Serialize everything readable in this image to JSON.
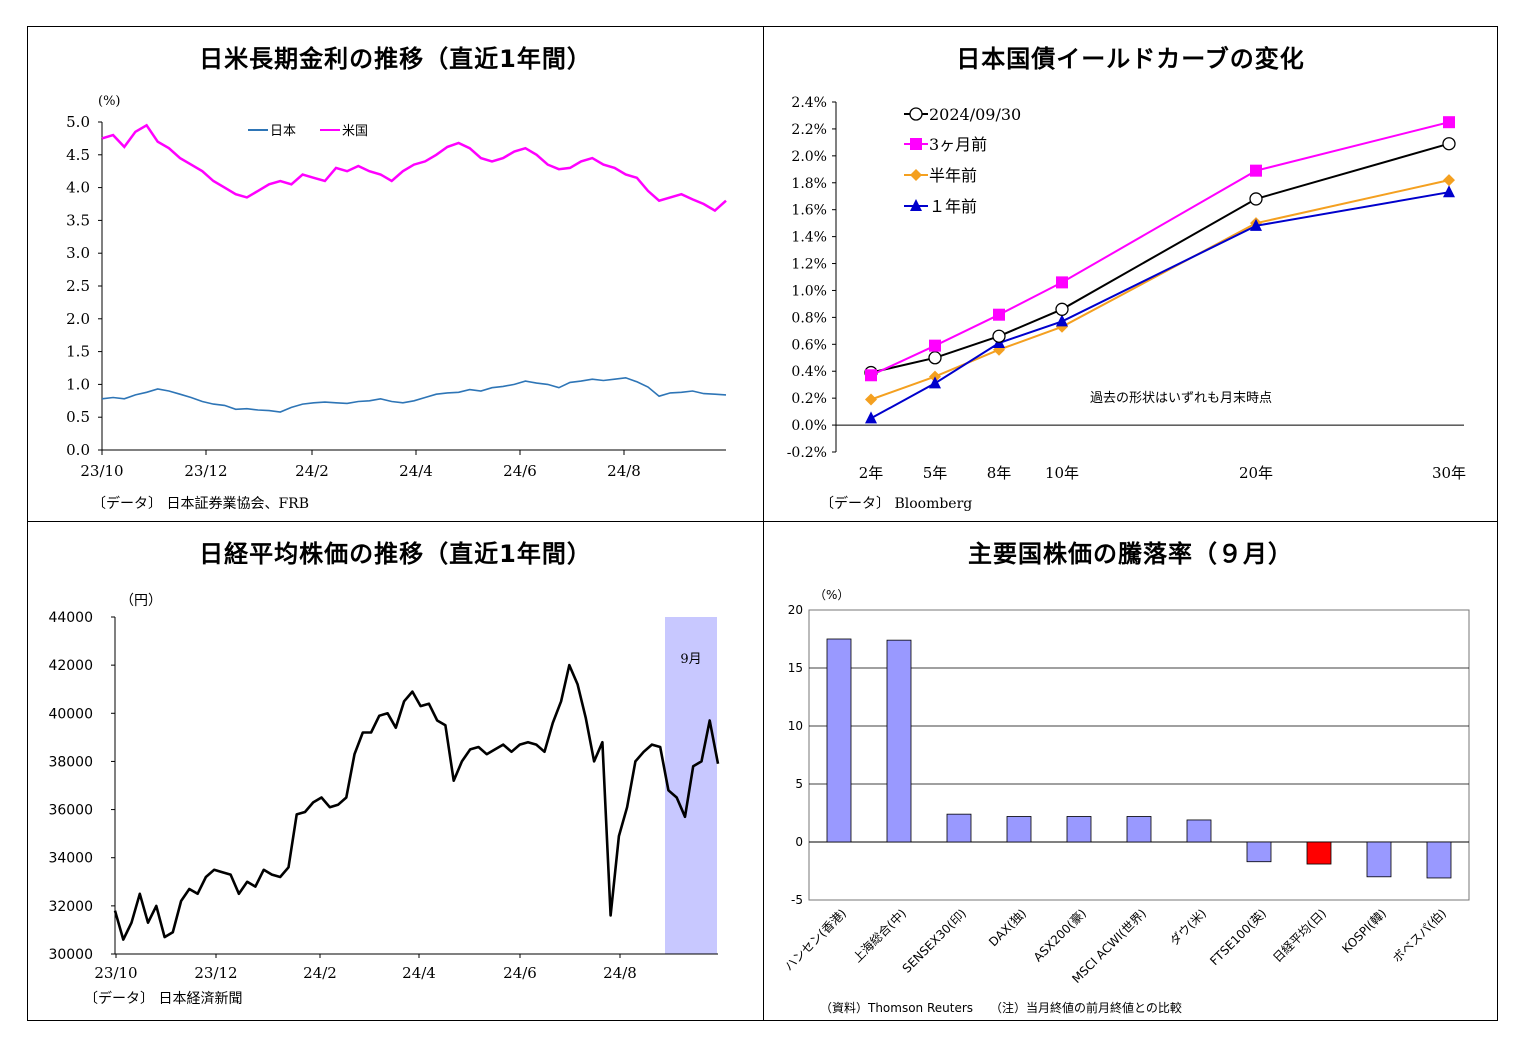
{
  "charts": [
    {
      "id": "rates",
      "title": "日米長期金利の推移（直近1年間）",
      "source": "〔データ〕 日本証券業協会、FRB",
      "chart_data": {
        "type": "line",
        "ylabel": "(%)",
        "ylim": [
          0,
          5
        ],
        "yticks": [
          "0.0",
          "0.5",
          "1.0",
          "1.5",
          "2.0",
          "2.5",
          "3.0",
          "3.5",
          "4.0",
          "4.5",
          "5.0"
        ],
        "xticks": [
          "23/10",
          "23/12",
          "24/2",
          "24/4",
          "24/6",
          "24/8"
        ],
        "series": [
          {
            "name": "日本",
            "color": "#2e75b6",
            "values": [
              0.78,
              0.8,
              0.78,
              0.84,
              0.88,
              0.93,
              0.9,
              0.85,
              0.8,
              0.74,
              0.7,
              0.68,
              0.62,
              0.63,
              0.61,
              0.6,
              0.58,
              0.65,
              0.7,
              0.72,
              0.73,
              0.72,
              0.71,
              0.74,
              0.75,
              0.78,
              0.74,
              0.72,
              0.75,
              0.8,
              0.85,
              0.87,
              0.88,
              0.92,
              0.9,
              0.95,
              0.97,
              1.0,
              1.05,
              1.02,
              1.0,
              0.95,
              1.03,
              1.05,
              1.08,
              1.06,
              1.08,
              1.1,
              1.04,
              0.96,
              0.82,
              0.87,
              0.88,
              0.9,
              0.86,
              0.85,
              0.84
            ]
          },
          {
            "name": "米国",
            "color": "#ff00ff",
            "values": [
              4.75,
              4.8,
              4.62,
              4.85,
              4.95,
              4.7,
              4.6,
              4.45,
              4.35,
              4.25,
              4.1,
              4.0,
              3.9,
              3.85,
              3.95,
              4.05,
              4.1,
              4.05,
              4.2,
              4.15,
              4.1,
              4.3,
              4.25,
              4.33,
              4.25,
              4.2,
              4.1,
              4.25,
              4.35,
              4.4,
              4.5,
              4.62,
              4.68,
              4.6,
              4.45,
              4.4,
              4.45,
              4.55,
              4.6,
              4.5,
              4.35,
              4.28,
              4.3,
              4.4,
              4.45,
              4.35,
              4.3,
              4.2,
              4.15,
              3.95,
              3.8,
              3.85,
              3.9,
              3.82,
              3.75,
              3.65,
              3.8
            ]
          }
        ]
      }
    },
    {
      "id": "yield",
      "title": "日本国債イールドカーブの変化",
      "source": "〔データ〕 Bloomberg",
      "annotation": "過去の形状はいずれも月末時点",
      "chart_data": {
        "type": "line",
        "x": [
          2,
          5,
          8,
          10,
          20,
          30
        ],
        "xticks": [
          "2年",
          "5年",
          "8年",
          "10年",
          "20年",
          "30年"
        ],
        "ylim": [
          -0.2,
          2.4
        ],
        "yticks": [
          "-0.2%",
          "0.0%",
          "0.2%",
          "0.4%",
          "0.6%",
          "0.8%",
          "1.0%",
          "1.2%",
          "1.4%",
          "1.6%",
          "1.8%",
          "2.0%",
          "2.2%",
          "2.4%"
        ],
        "series": [
          {
            "name": "2024/09/30",
            "color": "#000000",
            "marker": "circle",
            "values": [
              0.39,
              0.5,
              0.66,
              0.86,
              1.68,
              2.09
            ]
          },
          {
            "name": "3ヶ月前",
            "color": "#ff00ff",
            "marker": "square",
            "values": [
              0.37,
              0.59,
              0.82,
              1.06,
              1.89,
              2.25
            ]
          },
          {
            "name": "半年前",
            "color": "#f4a020",
            "marker": "diamond",
            "values": [
              0.19,
              0.36,
              0.56,
              0.73,
              1.5,
              1.82
            ]
          },
          {
            "name": "１年前",
            "color": "#0000cc",
            "marker": "triangle",
            "values": [
              0.05,
              0.31,
              0.61,
              0.77,
              1.48,
              1.73
            ]
          }
        ]
      }
    },
    {
      "id": "nikkei",
      "title": "日経平均株価の推移（直近1年間）",
      "source": "〔データ〕 日本経済新聞",
      "band_label": "9月",
      "chart_data": {
        "type": "line",
        "ylabel": "（円）",
        "ylim": [
          30000,
          44000
        ],
        "yticks": [
          "30000",
          "32000",
          "34000",
          "36000",
          "38000",
          "40000",
          "42000",
          "44000"
        ],
        "xticks": [
          "23/10",
          "23/12",
          "24/2",
          "24/4",
          "24/6",
          "24/8"
        ],
        "series": [
          {
            "name": "",
            "color": "#000000",
            "values": [
              31800,
              30600,
              31300,
              32500,
              31300,
              32000,
              30700,
              30900,
              32200,
              32700,
              32500,
              33200,
              33500,
              33400,
              33300,
              32500,
              33000,
              32800,
              33500,
              33300,
              33200,
              33600,
              35800,
              35900,
              36300,
              36500,
              36100,
              36200,
              36500,
              38300,
              39200,
              39200,
              39900,
              40000,
              39400,
              40500,
              40900,
              40300,
              40400,
              39700,
              39500,
              37200,
              38000,
              38500,
              38600,
              38300,
              38500,
              38700,
              38400,
              38700,
              38800,
              38700,
              38400,
              39600,
              40500,
              42000,
              41200,
              39800,
              38000,
              38800,
              31600,
              34900,
              36100,
              38000,
              38400,
              38700,
              38600,
              36800,
              36500,
              35700,
              37800,
              38000,
              39700,
              37900
            ]
          }
        ]
      }
    },
    {
      "id": "stocks",
      "title": "主要国株価の騰落率（９月）",
      "source_left": "（資料）Thomson Reuters",
      "source_right": "（注）当月終値の前月終値との比較",
      "chart_data": {
        "type": "bar",
        "ylabel": "（%）",
        "ylim": [
          -5,
          20
        ],
        "yticks": [
          "-5",
          "0",
          "5",
          "10",
          "15",
          "20"
        ],
        "categories": [
          "ハンセン(香港)",
          "上海総合(中)",
          "SENSEX30(印)",
          "DAX(独)",
          "ASX200(豪)",
          "MSCI ACWI(世界)",
          "ダウ(米)",
          "FTSE100(英)",
          "日経平均(日)",
          "KOSPI(韓)",
          "ボベスパ(伯)"
        ],
        "values": [
          17.5,
          17.4,
          2.4,
          2.2,
          2.2,
          2.2,
          1.9,
          -1.7,
          -1.9,
          -3.0,
          -3.1
        ],
        "colors": [
          "#9999ff",
          "#9999ff",
          "#9999ff",
          "#9999ff",
          "#9999ff",
          "#9999ff",
          "#9999ff",
          "#9999ff",
          "#ff0000",
          "#9999ff",
          "#9999ff"
        ]
      }
    }
  ]
}
